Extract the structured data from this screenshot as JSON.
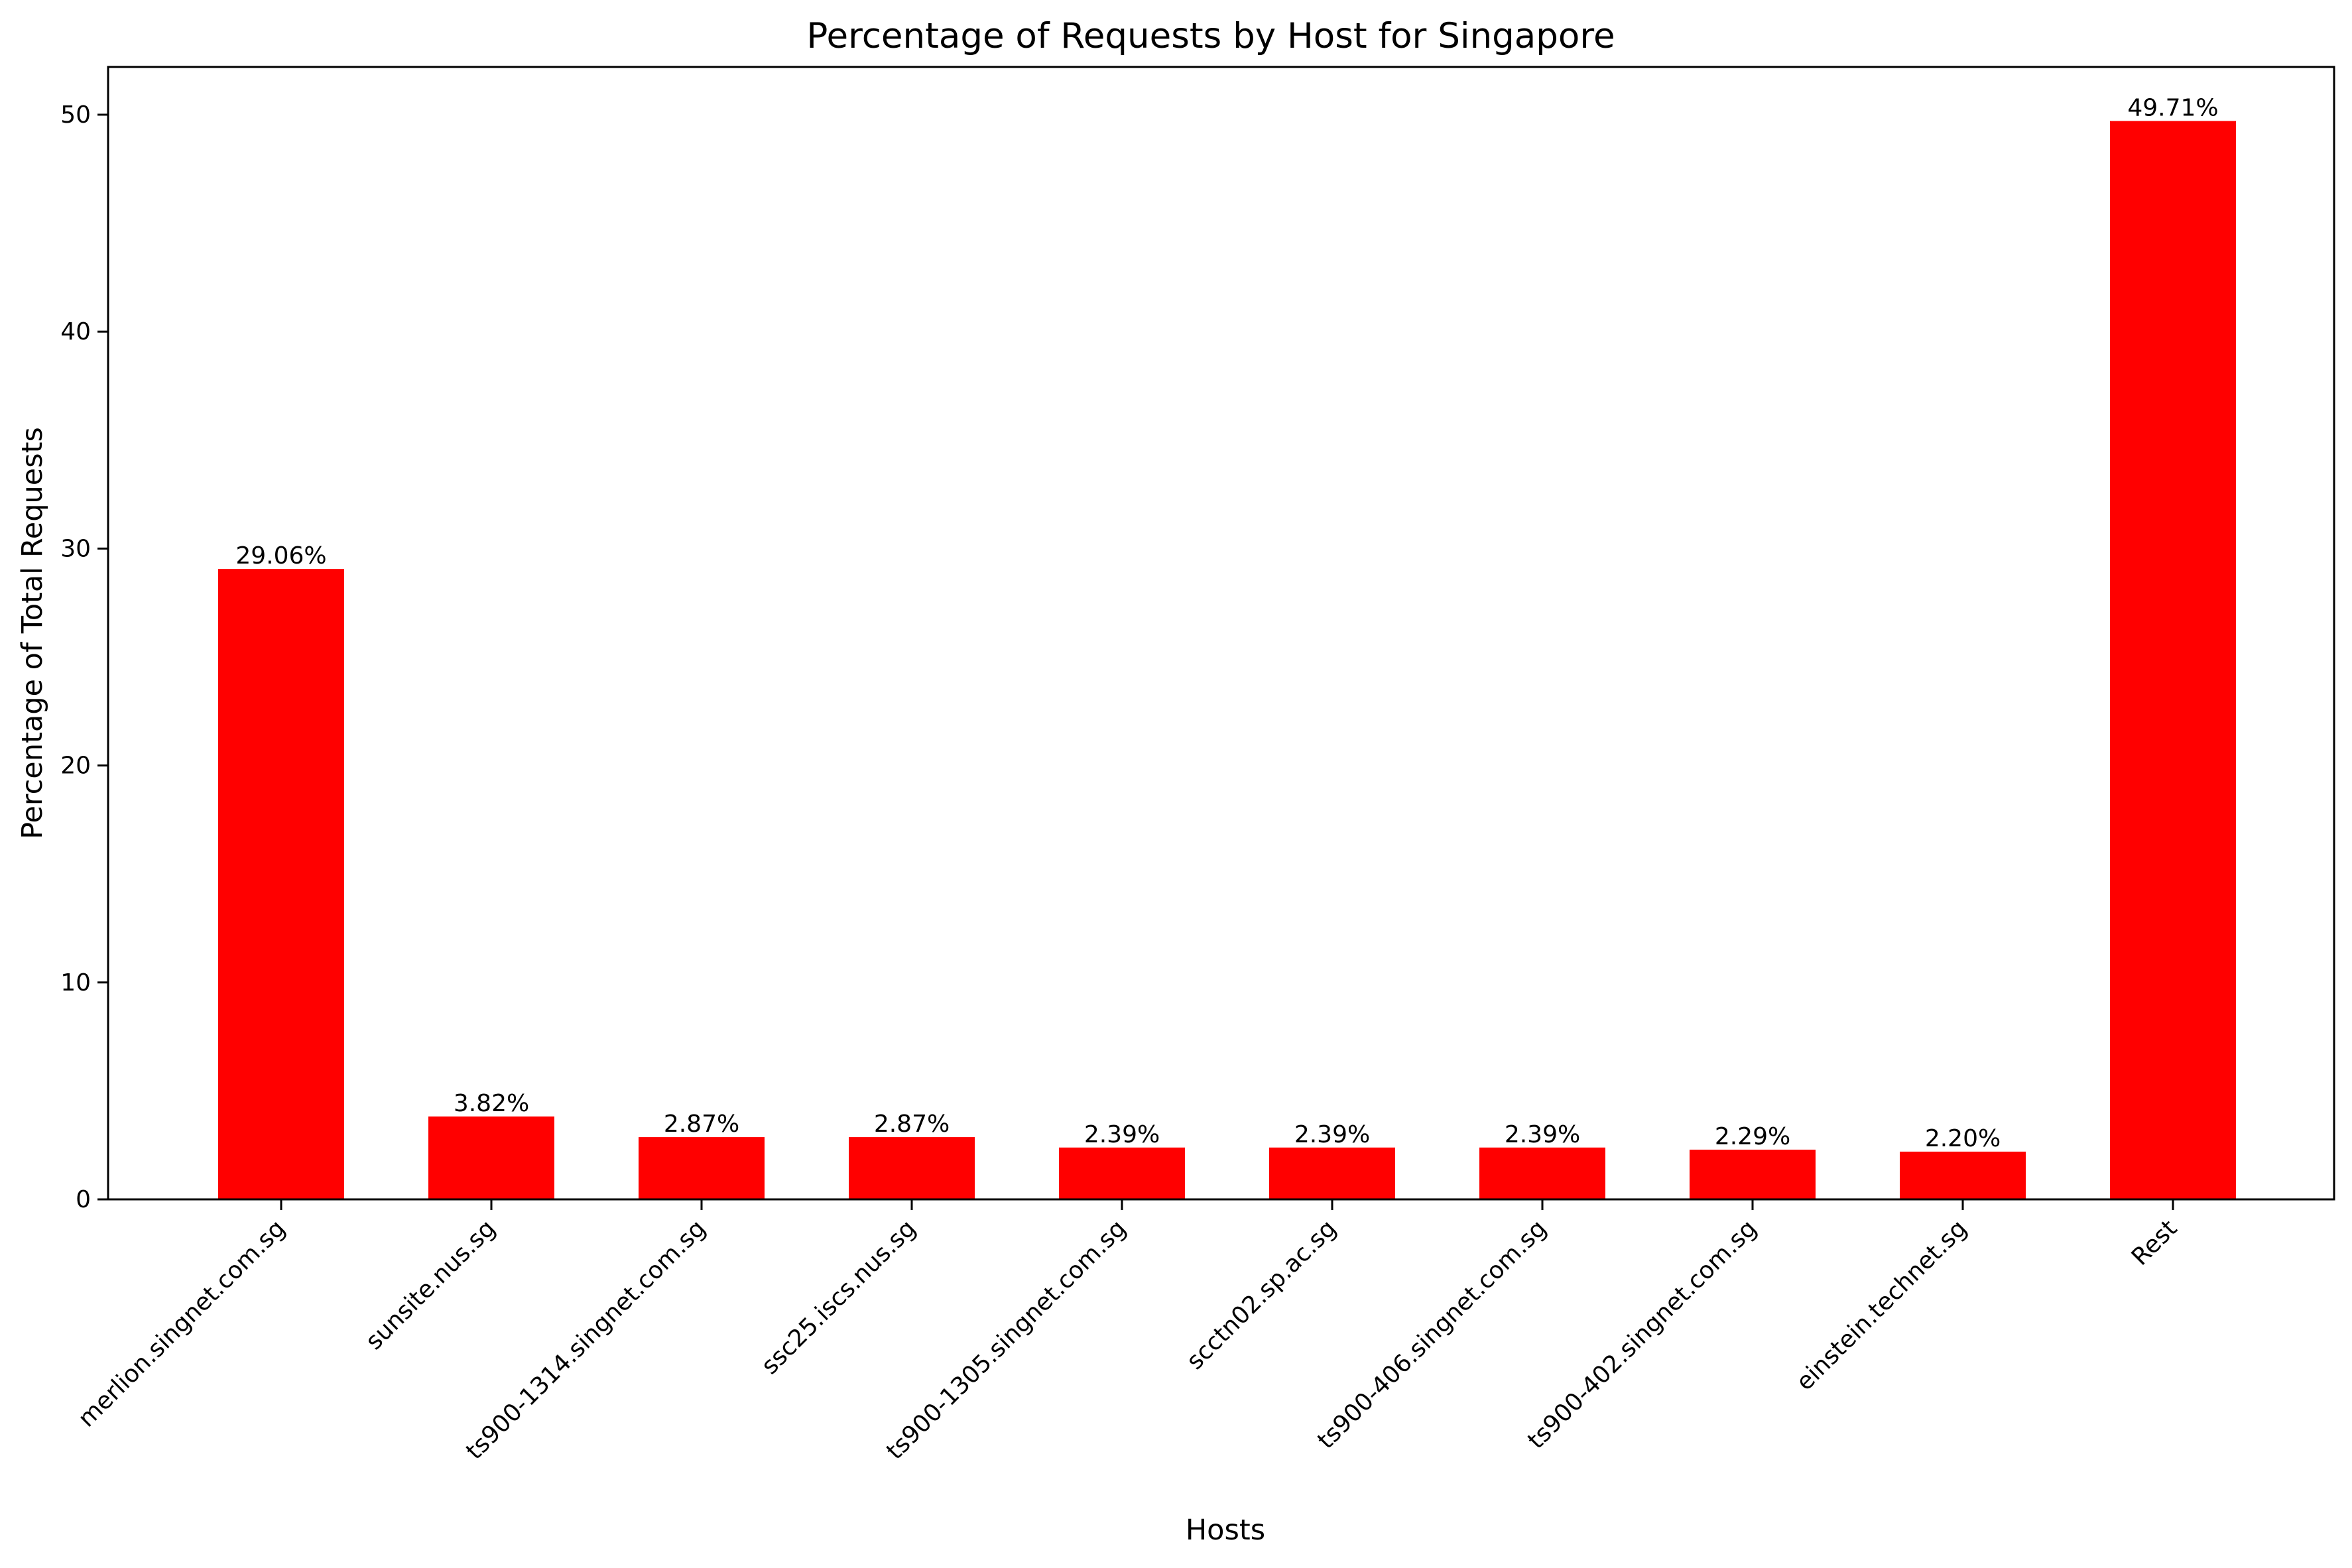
{
  "chart_data": {
    "type": "bar",
    "title": "Percentage of Requests by Host for Singapore",
    "xlabel": "Hosts",
    "ylabel": "Percentage of Total Requests",
    "categories": [
      "merlion.singnet.com.sg",
      "sunsite.nus.sg",
      "ts900-1314.singnet.com.sg",
      "ssc25.iscs.nus.sg",
      "ts900-1305.singnet.com.sg",
      "scctn02.sp.ac.sg",
      "ts900-406.singnet.com.sg",
      "ts900-402.singnet.com.sg",
      "einstein.technet.sg",
      "Rest"
    ],
    "values": [
      29.06,
      3.82,
      2.87,
      2.87,
      2.39,
      2.39,
      2.39,
      2.29,
      2.2,
      49.71
    ],
    "data_labels": [
      "29.06%",
      "3.82%",
      "2.87%",
      "2.87%",
      "2.39%",
      "2.39%",
      "2.39%",
      "2.29%",
      "2.20%",
      "49.71%"
    ],
    "ylim": [
      0,
      52.2
    ],
    "yticks": [
      0,
      10,
      20,
      30,
      40,
      50
    ],
    "bar_color": "#ff0000",
    "grid": false,
    "legend": "none"
  }
}
